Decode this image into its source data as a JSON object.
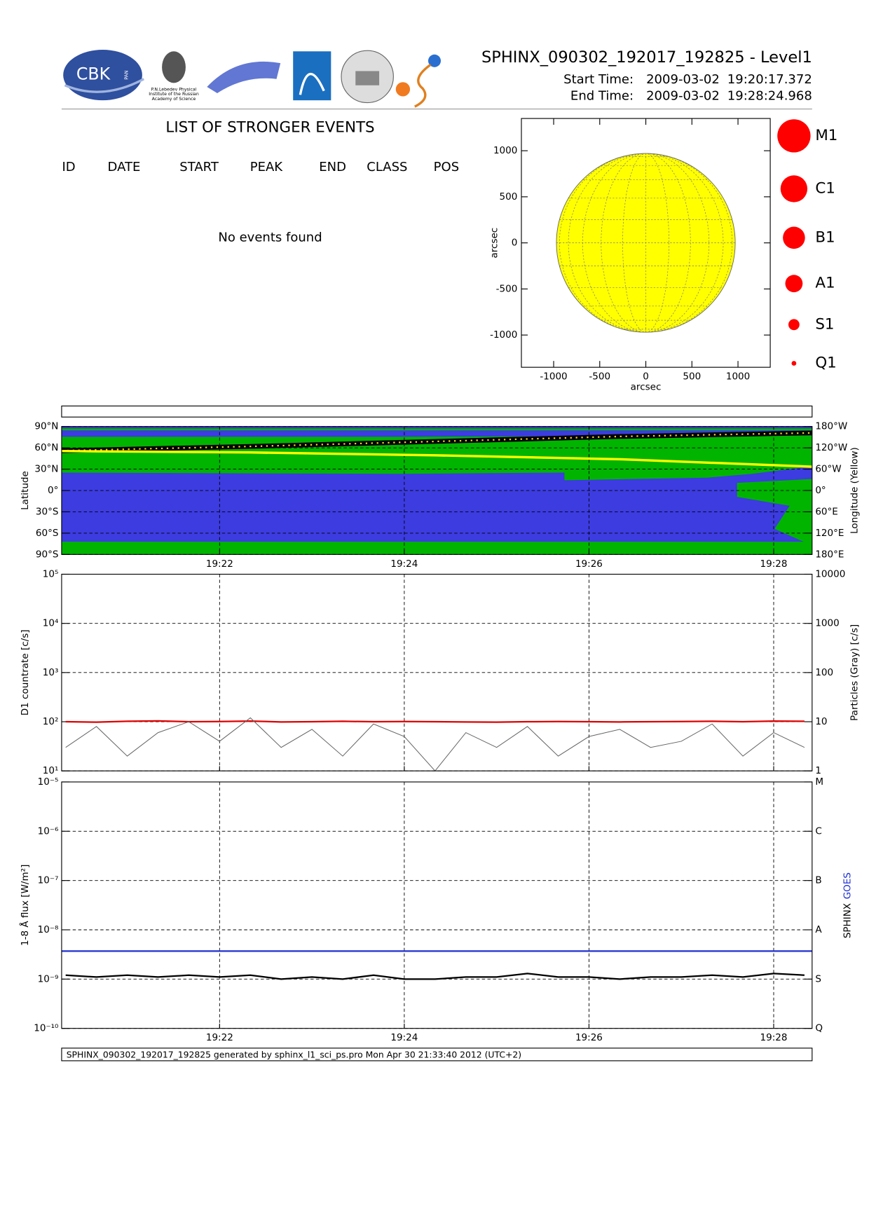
{
  "header": {
    "title": "SPHINX_090302_192017_192825 - Level1",
    "start_label": "Start Time:",
    "start_date": "2009-03-02",
    "start_time": "19:20:17.372",
    "end_label": "End Time:",
    "end_date": "2009-03-02",
    "end_time": "19:28:24.968",
    "logo_cbk": "CBK",
    "logo_pan": "PAN",
    "lebedev": [
      "P.N.Lebedev Physical",
      "Institute of the Russian",
      "Academy of Science"
    ]
  },
  "events": {
    "title": "LIST OF STRONGER EVENTS",
    "columns": [
      "ID",
      "DATE",
      "START",
      "PEAK",
      "END",
      "CLASS",
      "POS"
    ],
    "message": "No events found"
  },
  "footer": "SPHINX_090302_192017_192825 generated by sphinx_l1_sci_ps.pro Mon Apr 30 21:33:40 2012 (UTC+2)",
  "chart_data": [
    {
      "type": "disk",
      "xlabel": "arcsec",
      "ylabel": "arcsec",
      "xlim": [
        -1350,
        1350
      ],
      "ylim": [
        -1350,
        1350
      ],
      "xticks": [
        -1000,
        -500,
        0,
        500,
        1000
      ],
      "yticks": [
        -1000,
        -500,
        0,
        500,
        1000
      ],
      "solar_radius": 970,
      "color": "#ffff00",
      "legend": [
        "M1",
        "C1",
        "B1",
        "A1",
        "S1",
        "Q1"
      ],
      "legend_color": "#ff0000"
    },
    {
      "type": "map",
      "ylabel": "Latitude",
      "y2label": "Longitude (Yellow)",
      "xlim": [
        "19:20:17.372",
        "19:28:24.968"
      ],
      "xticks": [
        "19:22",
        "19:24",
        "19:26",
        "19:28"
      ],
      "show_xtick_labels": true,
      "log": false,
      "grid": true,
      "ylim": [
        -90,
        90
      ],
      "yticks": [
        {
          "value": -90,
          "label": "90°S"
        },
        {
          "value": -60,
          "label": "60°S"
        },
        {
          "value": -30,
          "label": "30°S"
        },
        {
          "value": 0,
          "label": "0°"
        },
        {
          "value": 30,
          "label": "30°N"
        },
        {
          "value": 60,
          "label": "60°N"
        },
        {
          "value": 90,
          "label": "90°N"
        }
      ],
      "y2lim": [
        180,
        -180
      ],
      "y2ticks": [
        {
          "value": -180,
          "label": "180°W"
        },
        {
          "value": -120,
          "label": "120°W"
        },
        {
          "value": -60,
          "label": "60°W"
        },
        {
          "value": 0,
          "label": "0°"
        },
        {
          "value": 60,
          "label": "60°E"
        },
        {
          "value": 120,
          "label": "120°E"
        },
        {
          "value": 180,
          "label": "180°E"
        }
      ],
      "x": [
        "19:20:17.372",
        "19:22:20",
        "19:24:20",
        "19:26:20",
        "19:28:24.968"
      ],
      "series": [
        {
          "color": "#000000",
          "values": [
            56,
            62,
            69,
            76,
            81
          ]
        },
        {
          "color": "#ffff00",
          "axis": "y2",
          "values": [
            -111,
            -107,
            -99,
            -88,
            -67
          ]
        }
      ]
    },
    {
      "type": "line",
      "ylabel": "D1 countrate [c/s]",
      "y2label": "Particles (Gray) [c/s]",
      "xlim": [
        "19:20:17.372",
        "19:28:24.968"
      ],
      "xticks": [
        "19:22",
        "19:24",
        "19:26",
        "19:28"
      ],
      "show_xtick_labels": false,
      "log": true,
      "grid": true,
      "ylim": [
        10,
        100000
      ],
      "yticks": [
        {
          "value": 10,
          "label": "10¹"
        },
        {
          "value": 100,
          "label": "10²"
        },
        {
          "value": 1000,
          "label": "10³"
        },
        {
          "value": 10000,
          "label": "10⁴"
        },
        {
          "value": 100000,
          "label": "10⁵"
        }
      ],
      "y2lim": [
        1,
        10000
      ],
      "y2ticks": [
        1,
        10,
        100,
        1000,
        10000
      ],
      "x": [
        "19:20:20",
        "19:20:40",
        "19:21:00",
        "19:21:20",
        "19:21:40",
        "19:22:00",
        "19:22:20",
        "19:22:40",
        "19:23:00",
        "19:23:20",
        "19:23:40",
        "19:24:00",
        "19:24:20",
        "19:24:40",
        "19:25:00",
        "19:25:20",
        "19:25:40",
        "19:26:00",
        "19:26:20",
        "19:26:40",
        "19:27:00",
        "19:27:20",
        "19:27:40",
        "19:28:00",
        "19:28:20"
      ],
      "series": [
        {
          "color": "#e00000",
          "values": [
            100,
            98,
            102,
            104,
            100,
            101,
            103,
            99,
            100,
            102,
            100,
            101,
            100,
            99,
            98,
            100,
            101,
            100,
            99,
            100,
            101,
            102,
            100,
            103,
            102
          ]
        },
        {
          "color": "#666666",
          "axis": "y2",
          "values": [
            3,
            8,
            2,
            6,
            10,
            4,
            12,
            3,
            7,
            2,
            9,
            5,
            1,
            6,
            3,
            8,
            2,
            5,
            7,
            3,
            4,
            9,
            2,
            6,
            3
          ]
        }
      ]
    },
    {
      "type": "line",
      "ylabel": "1-8 Å flux [W/m²]",
      "xlim": [
        "19:20:17.372",
        "19:28:24.968"
      ],
      "xticks": [
        "19:22",
        "19:24",
        "19:26",
        "19:28"
      ],
      "show_xtick_labels": true,
      "log": true,
      "grid": true,
      "ylim": [
        1e-10,
        1e-05
      ],
      "yticks": [
        {
          "value": 1e-10,
          "label": "10⁻¹⁰"
        },
        {
          "value": 1e-09,
          "label": "10⁻⁹"
        },
        {
          "value": 1e-08,
          "label": "10⁻⁸"
        },
        {
          "value": 1e-07,
          "label": "10⁻⁷"
        },
        {
          "value": 1e-06,
          "label": "10⁻⁶"
        },
        {
          "value": 1e-05,
          "label": "10⁻⁵"
        }
      ],
      "y2lim": [
        1e-10,
        1e-05
      ],
      "y2ticks": [
        {
          "value": 1e-10,
          "label": "Q"
        },
        {
          "value": 1e-09,
          "label": "S"
        },
        {
          "value": 1e-08,
          "label": "A"
        },
        {
          "value": 1e-07,
          "label": "B"
        },
        {
          "value": 1e-06,
          "label": "C"
        },
        {
          "value": 1e-05,
          "label": "M"
        }
      ],
      "x": [
        "19:20:20",
        "19:20:40",
        "19:21:00",
        "19:21:20",
        "19:21:40",
        "19:22:00",
        "19:22:20",
        "19:22:40",
        "19:23:00",
        "19:23:20",
        "19:23:40",
        "19:24:00",
        "19:24:20",
        "19:24:40",
        "19:25:00",
        "19:25:20",
        "19:25:40",
        "19:26:00",
        "19:26:20",
        "19:26:40",
        "19:27:00",
        "19:27:20",
        "19:27:40",
        "19:28:00",
        "19:28:20"
      ],
      "series": [
        {
          "name": "SPHINX",
          "color": "#000000",
          "values": [
            1.2e-09,
            1.1e-09,
            1.2e-09,
            1.1e-09,
            1.2e-09,
            1.1e-09,
            1.2e-09,
            1e-09,
            1.1e-09,
            1e-09,
            1.2e-09,
            1e-09,
            1e-09,
            1.1e-09,
            1.1e-09,
            1.3e-09,
            1.1e-09,
            1.1e-09,
            1e-09,
            1.1e-09,
            1.1e-09,
            1.2e-09,
            1.1e-09,
            1.3e-09,
            1.2e-09
          ]
        },
        {
          "name": "GOES",
          "color": "#1f2fd0",
          "x": [
            "19:20:17.372",
            "19:28:24.968"
          ],
          "values": [
            3.7e-09,
            3.7e-09
          ]
        }
      ]
    }
  ]
}
